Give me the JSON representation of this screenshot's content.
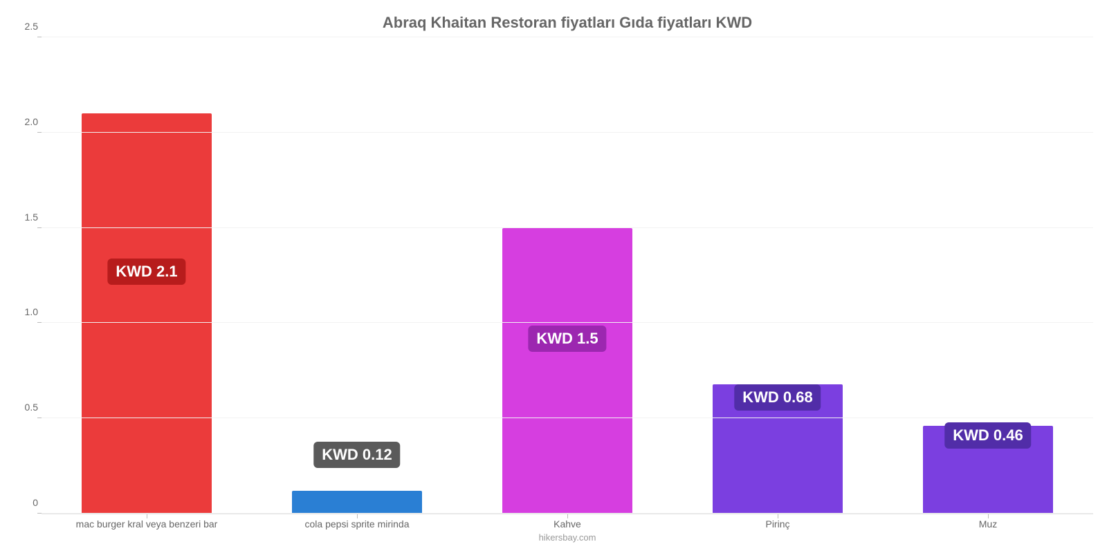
{
  "chart": {
    "type": "bar",
    "title": "Abraq Khaitan Restoran fiyatları Gıda fiyatları KWD",
    "title_color": "#666666",
    "title_fontsize": 22,
    "credit": "hikersbay.com",
    "credit_color": "#999999",
    "background_color": "#ffffff",
    "grid_color": "#f2f2f2",
    "axis_label_color": "#666666",
    "axis_label_fontsize": 14,
    "value_label_fontsize": 22,
    "value_label_text_color": "#ffffff",
    "ylim": [
      0,
      2.5
    ],
    "ytick_step": 0.5,
    "yticks": [
      {
        "pos": 0.0,
        "label": "0"
      },
      {
        "pos": 0.5,
        "label": "0.5"
      },
      {
        "pos": 1.0,
        "label": "1.0"
      },
      {
        "pos": 1.5,
        "label": "1.5"
      },
      {
        "pos": 2.0,
        "label": "2.0"
      },
      {
        "pos": 2.5,
        "label": "2.5"
      }
    ],
    "bar_width": 0.62,
    "bars": [
      {
        "category": "mac burger kral veya benzeri bar",
        "value": 2.1,
        "value_label": "KWD 2.1",
        "bar_color": "#eb3b3b",
        "badge_color": "#b71c1c",
        "label_y": 1.2
      },
      {
        "category": "cola pepsi sprite mirinda",
        "value": 0.12,
        "value_label": "KWD 0.12",
        "bar_color": "#2a7fd4",
        "badge_color": "#5a5a5a",
        "label_y": 0.24
      },
      {
        "category": "Kahve",
        "value": 1.5,
        "value_label": "KWD 1.5",
        "bar_color": "#d63ee0",
        "badge_color": "#9c27b0",
        "label_y": 0.85
      },
      {
        "category": "Pirinç",
        "value": 0.68,
        "value_label": "KWD 0.68",
        "bar_color": "#7b3fe0",
        "badge_color": "#512da8",
        "label_y": 0.54
      },
      {
        "category": "Muz",
        "value": 0.46,
        "value_label": "KWD 0.46",
        "bar_color": "#7b3fe0",
        "badge_color": "#512da8",
        "label_y": 0.34
      }
    ]
  }
}
